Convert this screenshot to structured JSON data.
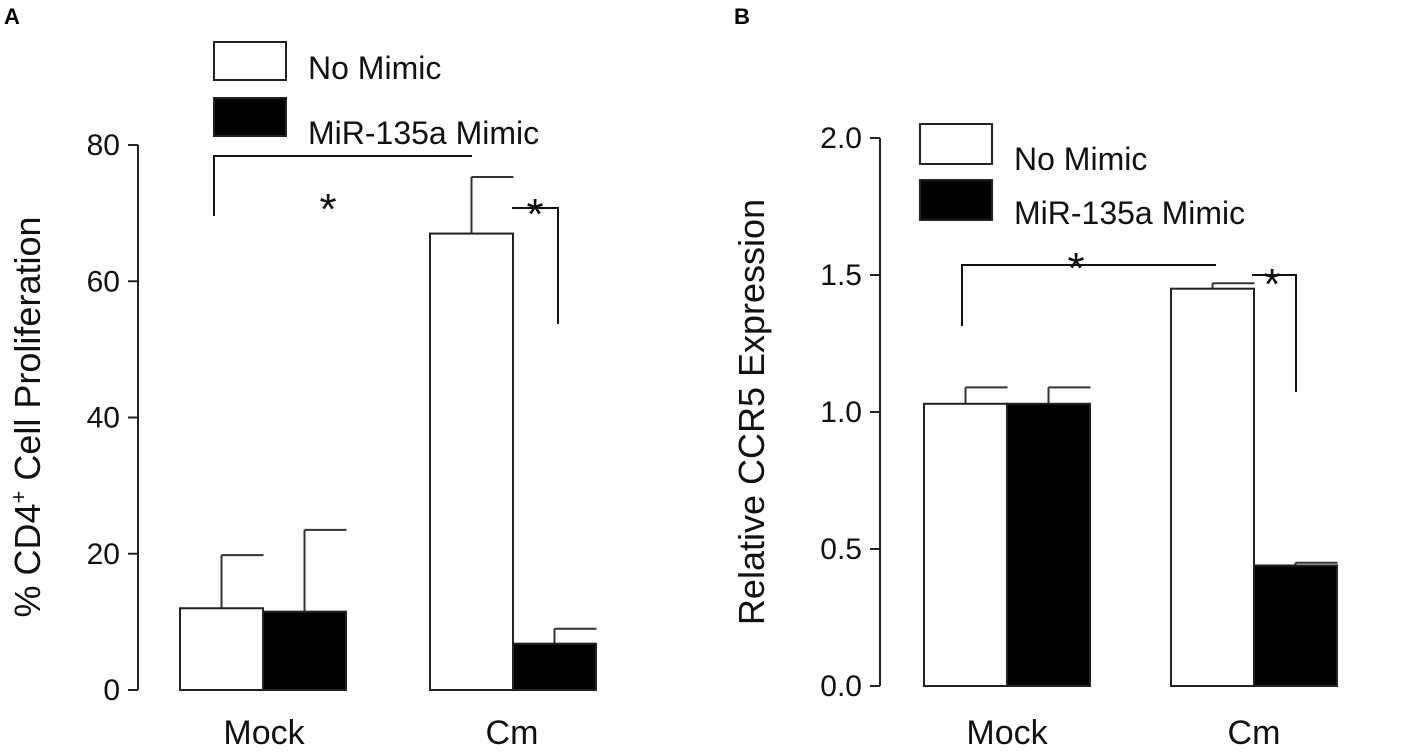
{
  "figure": {
    "panels": [
      "A",
      "B"
    ],
    "significance_marker": "*"
  },
  "chart_data": [
    {
      "panel": "A",
      "type": "bar",
      "categories": [
        "Mock",
        "Cm"
      ],
      "ylabel_parts": [
        "% CD4",
        "+",
        " Cell Proliferation"
      ],
      "ylim": [
        0,
        80
      ],
      "yticks": [
        0,
        20,
        40,
        60,
        80
      ],
      "ytick_labels": [
        "0",
        "20",
        "40",
        "60",
        "80"
      ],
      "legend_position": "top-left",
      "series": [
        {
          "name": "No Mimic",
          "color": "#ffffff",
          "values": [
            12.0,
            67.0
          ],
          "errors": [
            7.8,
            8.3
          ]
        },
        {
          "name": "MiR-135a Mimic",
          "color": "#000000",
          "values": [
            11.5,
            6.8
          ],
          "errors": [
            12.0,
            2.2
          ]
        }
      ],
      "significance": [
        {
          "from": [
            "Mock",
            "No Mimic"
          ],
          "to": [
            "Cm",
            "No Mimic"
          ],
          "label": "*"
        },
        {
          "from": [
            "Cm",
            "No Mimic"
          ],
          "to": [
            "Cm",
            "MiR-135a Mimic"
          ],
          "label": "*"
        }
      ]
    },
    {
      "panel": "B",
      "type": "bar",
      "categories": [
        "Mock",
        "Cm"
      ],
      "ylabel": "Relative CCR5 Expression",
      "ylim": [
        0.0,
        2.0
      ],
      "yticks": [
        0.0,
        0.5,
        1.0,
        1.5,
        2.0
      ],
      "ytick_labels": [
        "0.0",
        "0.5",
        "1.0",
        "1.5",
        "2.0"
      ],
      "legend_position": "top-left",
      "series": [
        {
          "name": "No Mimic",
          "color": "#ffffff",
          "values": [
            1.03,
            1.45
          ],
          "errors": [
            0.06,
            0.02
          ]
        },
        {
          "name": "MiR-135a Mimic",
          "color": "#000000",
          "values": [
            1.03,
            0.44
          ],
          "errors": [
            0.06,
            0.01
          ]
        }
      ],
      "significance": [
        {
          "from": [
            "Mock",
            "No Mimic"
          ],
          "to": [
            "Cm",
            "No Mimic"
          ],
          "label": "*"
        },
        {
          "from": [
            "Cm",
            "No Mimic"
          ],
          "to": [
            "Cm",
            "MiR-135a Mimic"
          ],
          "label": "*"
        }
      ]
    }
  ]
}
